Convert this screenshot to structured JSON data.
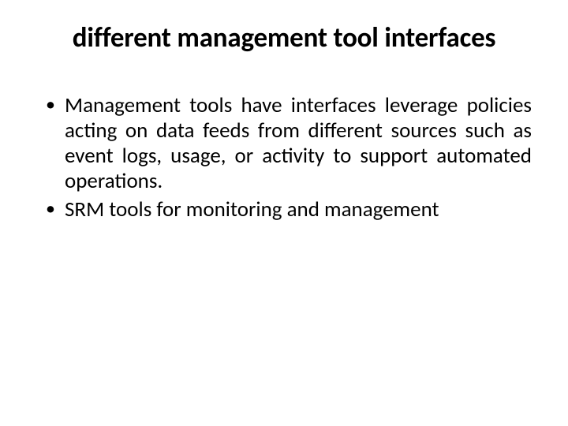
{
  "slide": {
    "title": "different management tool interfaces",
    "bullets": [
      "Management tools have interfaces leverage policies acting on data feeds from different sources such as event logs, usage, or activity to support automated operations.",
      "SRM tools for monitoring and management"
    ],
    "title_fontsize": 35,
    "body_fontsize": 27,
    "text_color": "#000000",
    "background_color": "#ffffff"
  }
}
